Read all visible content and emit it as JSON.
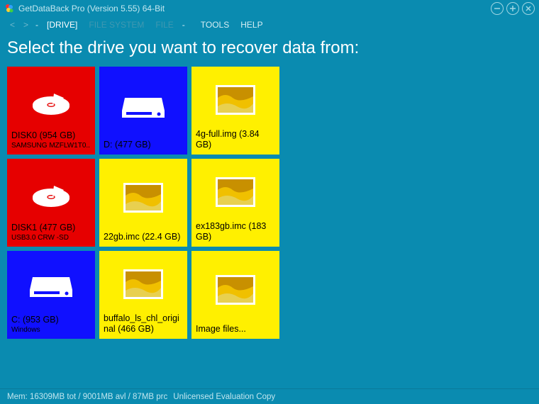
{
  "window": {
    "title": "GetDataBack Pro (Version 5.55) 64-Bit"
  },
  "nav": {
    "back": "<",
    "fwd": ">",
    "sep": "-"
  },
  "breadcrumb": {
    "drive": "[DRIVE]",
    "filesystem": "FILE SYSTEM",
    "file": "FILE"
  },
  "menu": {
    "tools": "TOOLS",
    "help": "HELP"
  },
  "heading": "Select the drive you want to recover data from:",
  "tiles": [
    {
      "kind": "disk",
      "color": "red",
      "label1": "DISK0 (954 GB)",
      "label2": "SAMSUNG MZFLW1T0.."
    },
    {
      "kind": "drive",
      "color": "blue",
      "label1": "D: (477 GB)",
      "label2": ""
    },
    {
      "kind": "image",
      "color": "yellow",
      "label1": "4g-full.img (3.84 GB)",
      "label2": ""
    },
    {
      "kind": "disk",
      "color": "red",
      "label1": "DISK1 (477 GB)",
      "label2": "USB3.0 CRW   -SD"
    },
    {
      "kind": "image",
      "color": "yellow",
      "label1": "22gb.imc (22.4 GB)",
      "label2": ""
    },
    {
      "kind": "image",
      "color": "yellow",
      "label1": "ex183gb.imc (183 GB)",
      "label2": ""
    },
    {
      "kind": "drive",
      "color": "blue",
      "label1": "C: (953 GB)",
      "label2": "Windows"
    },
    {
      "kind": "image",
      "color": "yellow",
      "label1": "buffalo_ls_chl_original (466 GB)",
      "label2": ""
    },
    {
      "kind": "image",
      "color": "yellow",
      "label1": "Image files...",
      "label2": ""
    }
  ],
  "status": {
    "mem": "Mem: 16309MB tot / 9001MB avl / 87MB prc",
    "license": "Unlicensed Evaluation Copy"
  },
  "colors": {
    "bg": "#0a8bb0",
    "red": "#e60000",
    "blue": "#1010ff",
    "yellow": "#fff000"
  }
}
